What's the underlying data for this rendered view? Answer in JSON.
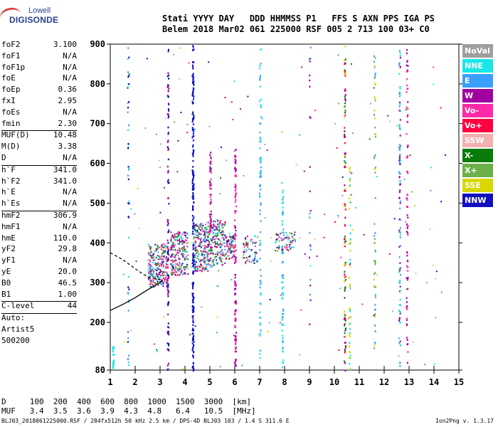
{
  "logo": {
    "line1": "Lowell",
    "line2": "DIGISONDE"
  },
  "header": {
    "line1": "Stati YYYY DAY   DDD HHMMSS P1   FFS S AXN PPS IGA PS",
    "line2": "Belem 2018 Mar02 061 225000 RSF 005 2 713 100 03+ C0"
  },
  "params": [
    {
      "k": "foF2",
      "v": "3.100"
    },
    {
      "k": "foF1",
      "v": "N/A"
    },
    {
      "k": "foF1p",
      "v": "N/A"
    },
    {
      "k": "foE",
      "v": "N/A"
    },
    {
      "k": "foEp",
      "v": "0.36"
    },
    {
      "k": "fxI",
      "v": "2.95"
    },
    {
      "k": "foEs",
      "v": "N/A"
    },
    {
      "k": "fmin",
      "v": "2.30"
    },
    {
      "k": "MUF(D)",
      "v": "10.48",
      "sep": true
    },
    {
      "k": "M(D)",
      "v": "3.38"
    },
    {
      "k": "D",
      "v": "N/A"
    },
    {
      "k": "h`F",
      "v": "341.0",
      "sep": true
    },
    {
      "k": "h`F2",
      "v": "341.0"
    },
    {
      "k": "h`E",
      "v": "N/A"
    },
    {
      "k": "h`Es",
      "v": "N/A"
    },
    {
      "k": "hmF2",
      "v": "306.9",
      "sep": true
    },
    {
      "k": "hmF1",
      "v": "N/A"
    },
    {
      "k": "hmE",
      "v": "110.0"
    },
    {
      "k": "yF2",
      "v": "29.8"
    },
    {
      "k": "yF1",
      "v": "N/A"
    },
    {
      "k": "yE",
      "v": "20.0"
    },
    {
      "k": "B0",
      "v": "46.5"
    },
    {
      "k": "B1",
      "v": "1.00"
    },
    {
      "k": "C-level",
      "v": "44",
      "sep": true
    },
    {
      "k": "Auto:",
      "v": "",
      "sep": true
    },
    {
      "k": "Artist5",
      "v": ""
    },
    {
      "k": "500200",
      "v": ""
    }
  ],
  "legend": [
    {
      "label": "NoVal",
      "color": "#9e9e9e"
    },
    {
      "label": "NNE",
      "color": "#19e6e6"
    },
    {
      "label": "E",
      "color": "#3aa0ff"
    },
    {
      "label": "W",
      "color": "#a000a0"
    },
    {
      "label": "Vo-",
      "color": "#ff2aa8"
    },
    {
      "label": "Vo+",
      "color": "#ff0040"
    },
    {
      "label": "SSW",
      "color": "#f4b0b0"
    },
    {
      "label": "X-",
      "color": "#0a7a0a"
    },
    {
      "label": "X+",
      "color": "#6cb04a"
    },
    {
      "label": "SSE",
      "color": "#d8d800"
    },
    {
      "label": "NNW",
      "color": "#1010c0"
    }
  ],
  "chart_data": {
    "type": "scatter",
    "xlim": [
      1,
      15
    ],
    "ylim": [
      80,
      900
    ],
    "xticks": [
      "1",
      "2",
      "3",
      "4",
      "5",
      "6",
      "7",
      "8",
      "9",
      "10",
      "11",
      "12",
      "13",
      "14",
      "15"
    ],
    "yticks": [
      "80",
      "200",
      "300",
      "400",
      "500",
      "600",
      "700",
      "800",
      "900"
    ],
    "profile_solid": [
      [
        1,
        230
      ],
      [
        1.5,
        245
      ],
      [
        2,
        262
      ],
      [
        2.5,
        282
      ],
      [
        3,
        300
      ],
      [
        3.1,
        307
      ]
    ],
    "profile_dashed": [
      [
        1,
        375
      ],
      [
        1.5,
        358
      ],
      [
        2,
        335
      ],
      [
        2.3,
        322
      ],
      [
        2.6,
        312
      ],
      [
        3.1,
        307
      ]
    ]
  },
  "bottom": {
    "line1": "D     100  200  400  600  800  1000  1500  3000  [km]",
    "line2": "MUF   3.4  3.5  3.6  3.9  4.3  4.8   6.4   10.5  [MHz]"
  },
  "footer": "BLJ03_2018061225000.RSF / 284fx512h 50 kHz 2.5 km / DPS-4D BLJ03 103 / 1.4 S 311.6 E",
  "version": "Ion2Png v. 1.3.17"
}
